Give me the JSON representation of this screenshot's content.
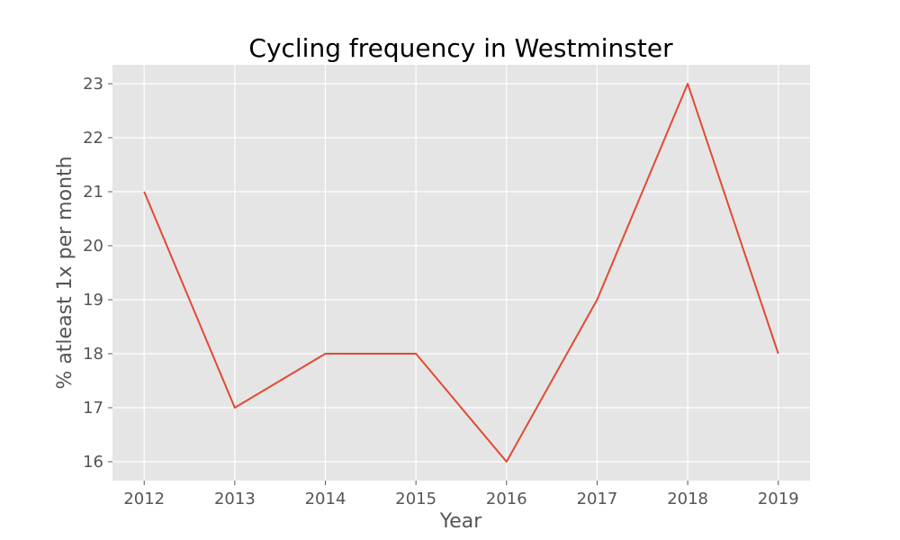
{
  "chart_data": {
    "type": "line",
    "title": "Cycling frequency in Westminster",
    "xlabel": "Year",
    "ylabel": "% atleast 1x per month",
    "x": [
      2012,
      2013,
      2014,
      2015,
      2016,
      2017,
      2018,
      2019
    ],
    "series": [
      {
        "values": [
          21,
          17,
          18,
          18,
          16,
          19,
          23,
          18
        ],
        "color": "#E24A33"
      }
    ],
    "xticks": [
      "2012",
      "2013",
      "2014",
      "2015",
      "2016",
      "2017",
      "2018",
      "2019"
    ],
    "yticks": [
      "16",
      "17",
      "18",
      "19",
      "20",
      "21",
      "22",
      "23"
    ],
    "xlim": [
      2011.65,
      2019.35
    ],
    "ylim": [
      15.65,
      23.35
    ],
    "grid": true,
    "background_color": "#E5E5E5",
    "grid_color": "#FFFFFF"
  }
}
